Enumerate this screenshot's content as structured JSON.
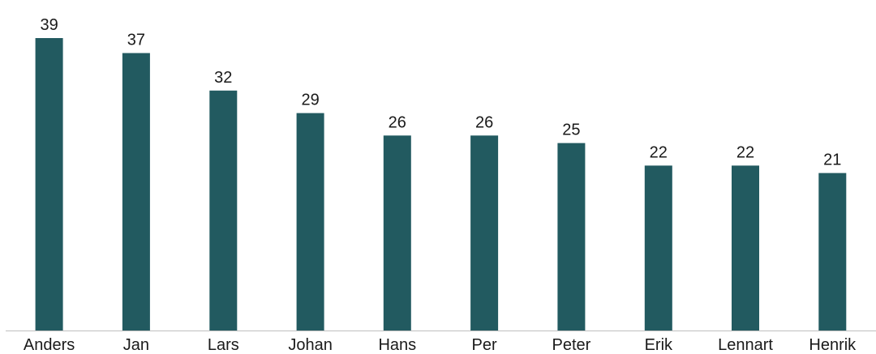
{
  "chart_data": {
    "type": "bar",
    "title": "",
    "xlabel": "",
    "ylabel": "",
    "categories": [
      "Anders",
      "Jan",
      "Lars",
      "Johan",
      "Hans",
      "Per",
      "Peter",
      "Erik",
      "Lennart",
      "Henrik"
    ],
    "values": [
      39,
      37,
      32,
      29,
      26,
      26,
      25,
      22,
      22,
      21
    ],
    "ylim": [
      0,
      39
    ],
    "grid": false,
    "legend": "none",
    "data_labels": true,
    "colors": {
      "bar": "#225A60",
      "axis": "#bfbfbf",
      "text": "#1a1a1a"
    }
  }
}
